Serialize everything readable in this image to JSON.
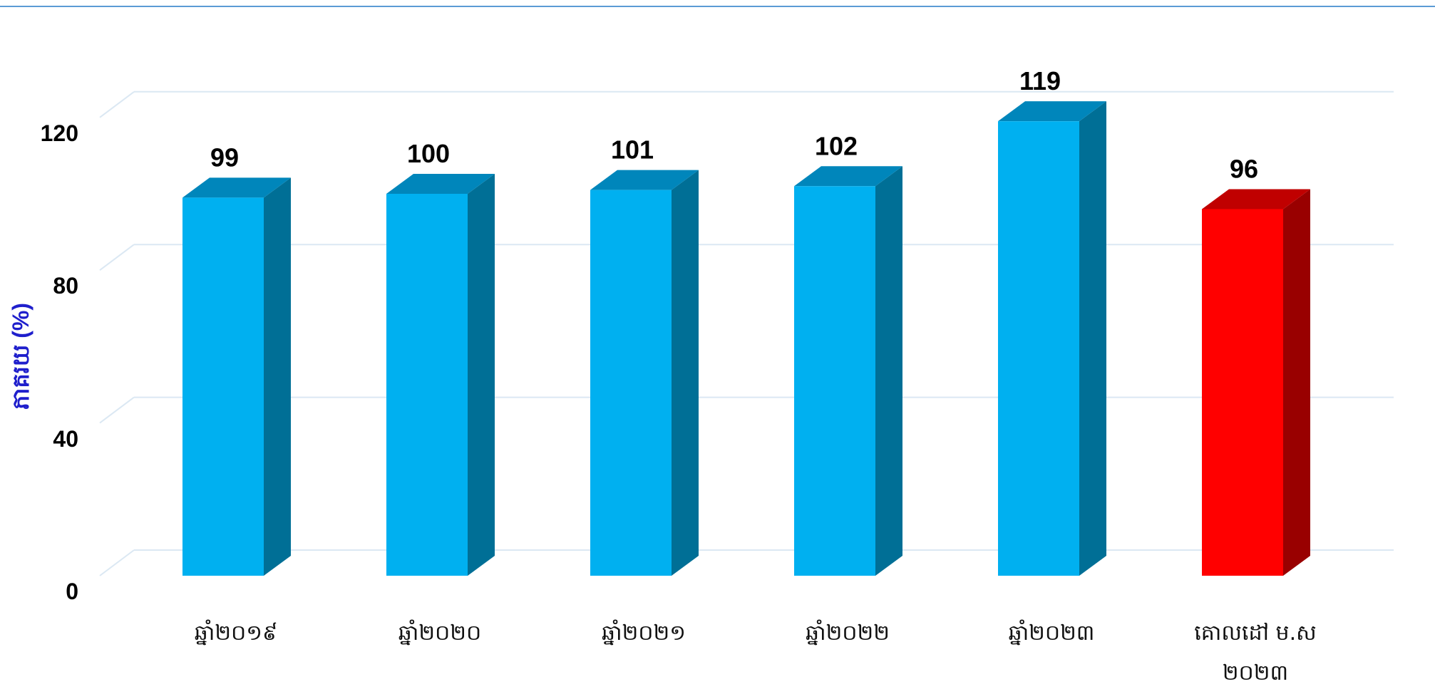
{
  "chart_data": {
    "type": "bar",
    "ylabel": "ភាគរយ (%)",
    "ylim": [
      0,
      130
    ],
    "yticks": [
      "0",
      "40",
      "80",
      "120"
    ],
    "categories": [
      [
        "ឆ្នាំ២០១៩"
      ],
      [
        "ឆ្នាំ២០២០"
      ],
      [
        "ឆ្នាំ២០២១"
      ],
      [
        "ឆ្នាំ២០២២"
      ],
      [
        "ឆ្នាំ២០២៣"
      ],
      [
        "គោលដៅ ម.ស",
        "២០២៣"
      ]
    ],
    "values": [
      99,
      100,
      101,
      102,
      119,
      96
    ],
    "data_labels": [
      "99",
      "100",
      "101",
      "102",
      "119",
      "96"
    ],
    "grid": true,
    "colors": {
      "bar_front": "#00b0f0",
      "bar_side": "#006f96",
      "bar_top": "#0086bb",
      "highlight_front": "#ff0000",
      "highlight_side": "#990000",
      "highlight_top": "#c00000",
      "ylabel": "#1f1fcc",
      "gridline": "#dbe8f3"
    },
    "highlight_index": 5
  }
}
